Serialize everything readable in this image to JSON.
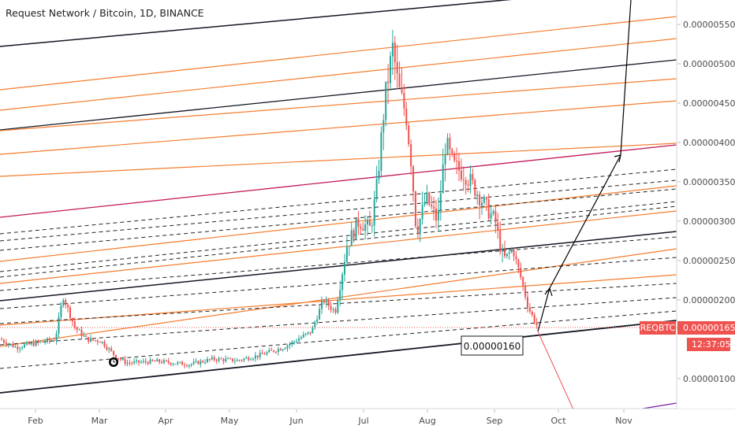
{
  "header": {
    "title": "Request Network / Bitcoin, 1D, BINANCE"
  },
  "colors": {
    "up": "#26a69a",
    "down": "#ef5350",
    "orange": "#f57c2e",
    "red_line": "#c2185b",
    "black": "#131722",
    "price_tag": "#ef5350",
    "timer_tag": "#ef5350",
    "purple": "#7b1fa2"
  },
  "chart_data": {
    "type": "candlestick",
    "symbol": "REQBTC",
    "y_range": [
      6.5e-07,
      5.8e-06
    ],
    "y_ticks": [
      "0.00000100",
      "0.00000150",
      "0.00000200",
      "0.00000250",
      "0.00000300",
      "0.00000350",
      "0.00000400",
      "0.00000450",
      "0.00000500",
      "0.00000550"
    ],
    "x_ticks": [
      "Feb",
      "Mar",
      "Apr",
      "May",
      "Jun",
      "Jul",
      "Aug",
      "Sep",
      "Oct",
      "Nov"
    ],
    "last_price_label": "0.00000165",
    "countdown": "12:37:05",
    "symbol_label": "REQBTC",
    "annotation": "0.00000160",
    "key_closes": [
      {
        "date": "Jan 10",
        "close": 1.42e-06
      },
      {
        "date": "Feb 15",
        "close": 2.05e-06
      },
      {
        "date": "Mar 10",
        "close": 1.35e-06
      },
      {
        "date": "Apr 15",
        "close": 1.2e-06
      },
      {
        "date": "May 20",
        "close": 1.25e-06
      },
      {
        "date": "Jun 10",
        "close": 1.8e-06
      },
      {
        "date": "Jun 25",
        "close": 3e-06
      },
      {
        "date": "Jul 15",
        "close": 4.55e-06
      },
      {
        "date": "Jul 18",
        "close": 5.6e-06
      },
      {
        "date": "Aug 05",
        "close": 2.85e-06
      },
      {
        "date": "Aug 20",
        "close": 4.2e-06
      },
      {
        "date": "Sep 10",
        "close": 2.4e-06
      },
      {
        "date": "Sep 20",
        "close": 1.65e-06
      }
    ]
  }
}
